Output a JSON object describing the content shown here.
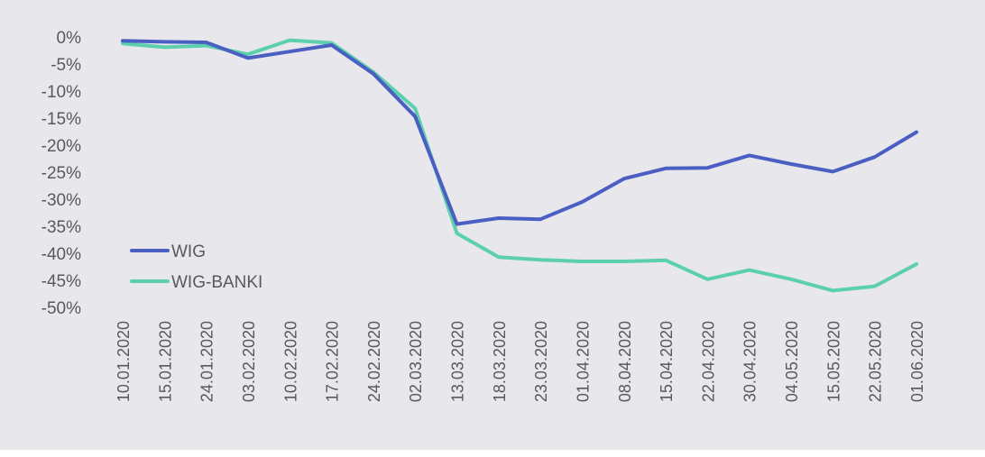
{
  "chart_data": {
    "type": "line",
    "title": "",
    "xlabel": "",
    "ylabel": "",
    "categories": [
      "10.01.2020",
      "15.01.2020",
      "24.01.2020",
      "03.02.2020",
      "10.02.2020",
      "17.02.2020",
      "24.02.2020",
      "02.03.2020",
      "13.03.2020",
      "18.03.2020",
      "23.03.2020",
      "01.04.2020",
      "08.04.2020",
      "15.04.2020",
      "22.04.2020",
      "30.04.2020",
      "04.05.2020",
      "15.05.2020",
      "22.05.2020",
      "01.06.2020"
    ],
    "series": [
      {
        "name": "WIG",
        "color": "#4a5fc1",
        "values": [
          -0.7,
          -0.9,
          -1.0,
          -3.9,
          -2.7,
          -1.5,
          -6.8,
          -14.7,
          -34.6,
          -33.5,
          -33.7,
          -30.5,
          -26.2,
          -24.3,
          -24.2,
          -21.9,
          -23.5,
          -24.9,
          -22.2,
          -17.6
        ]
      },
      {
        "name": "WIG-BANKI",
        "color": "#5ccfad",
        "values": [
          -1.2,
          -1.9,
          -1.6,
          -3.2,
          -0.6,
          -1.1,
          -6.5,
          -13.2,
          -36.3,
          -40.7,
          -41.2,
          -41.5,
          -41.5,
          -41.3,
          -44.8,
          -43.1,
          -44.8,
          -46.9,
          -46.1,
          -42.0
        ]
      }
    ],
    "yticks": [
      0,
      -5,
      -10,
      -15,
      -20,
      -25,
      -30,
      -35,
      -40,
      -45,
      -50
    ],
    "ytick_labels": [
      "0%",
      "-5%",
      "-10%",
      "-15%",
      "-20%",
      "-25%",
      "-30%",
      "-35%",
      "-40%",
      "-45%",
      "-50%"
    ],
    "ylim": [
      -50,
      0
    ],
    "grid": false,
    "legend_position": "bottom-left"
  }
}
